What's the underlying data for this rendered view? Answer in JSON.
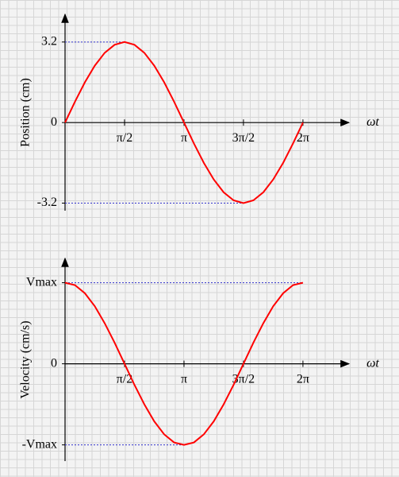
{
  "chart_data": [
    {
      "type": "line",
      "y_label": "Position (cm)",
      "x_label": "ωt",
      "color": "#ff0000",
      "x": [
        0,
        0.262,
        0.524,
        0.785,
        1.047,
        1.309,
        1.571,
        1.833,
        2.094,
        2.356,
        2.618,
        2.88,
        3.142,
        3.403,
        3.665,
        3.927,
        4.189,
        4.451,
        4.712,
        4.974,
        5.236,
        5.498,
        5.76,
        6.021,
        6.283
      ],
      "values": [
        0,
        0.83,
        1.6,
        2.26,
        2.77,
        3.09,
        3.2,
        3.09,
        2.77,
        2.26,
        1.6,
        0.83,
        0,
        -0.83,
        -1.6,
        -2.26,
        -2.77,
        -3.09,
        -3.2,
        -3.09,
        -2.77,
        -2.26,
        -1.6,
        -0.83,
        0
      ],
      "xlim": [
        0,
        7.5
      ],
      "ylim": [
        -3.5,
        4.3
      ],
      "xticks": [
        {
          "value": 1.571,
          "label": "π/2"
        },
        {
          "value": 3.142,
          "label": "π"
        },
        {
          "value": 4.712,
          "label": "3π/2"
        },
        {
          "value": 6.283,
          "label": "2π"
        }
      ],
      "yticks": [
        3.2,
        0,
        -3.2
      ]
    },
    {
      "type": "line",
      "y_label": "Velocity (cm/s)",
      "x_label": "ωt",
      "color": "#ff0000",
      "x": [
        0,
        0.262,
        0.524,
        0.785,
        1.047,
        1.309,
        1.571,
        1.833,
        2.094,
        2.356,
        2.618,
        2.88,
        3.142,
        3.403,
        3.665,
        3.927,
        4.189,
        4.451,
        4.712,
        4.974,
        5.236,
        5.498,
        5.76,
        6.021,
        6.283
      ],
      "values": [
        1,
        0.97,
        0.87,
        0.71,
        0.5,
        0.26,
        0,
        -0.26,
        -0.5,
        -0.71,
        -0.87,
        -0.97,
        -1,
        -0.97,
        -0.87,
        -0.71,
        -0.5,
        -0.26,
        0,
        0.26,
        0.5,
        0.71,
        0.87,
        0.97,
        1
      ],
      "xlim": [
        0,
        7.5
      ],
      "ylim": [
        -1.2,
        1.3
      ],
      "xticks": [
        {
          "value": 1.571,
          "label": "π/2"
        },
        {
          "value": 3.142,
          "label": "π"
        },
        {
          "value": 4.712,
          "label": "3π/2"
        },
        {
          "value": 6.283,
          "label": "2π"
        }
      ],
      "yticks": [
        {
          "value": 1,
          "label": "Vmax"
        },
        0,
        {
          "value": -1,
          "label": "-Vmax"
        }
      ]
    }
  ]
}
